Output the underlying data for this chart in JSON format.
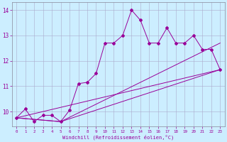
{
  "xlabel": "Windchill (Refroidissement éolien,°C)",
  "bg_color": "#cceeff",
  "line_color": "#990099",
  "xlim": [
    -0.5,
    23.5
  ],
  "ylim": [
    9.4,
    14.3
  ],
  "xticks": [
    0,
    1,
    2,
    3,
    4,
    5,
    6,
    7,
    8,
    9,
    10,
    11,
    12,
    13,
    14,
    15,
    16,
    17,
    18,
    19,
    20,
    21,
    22,
    23
  ],
  "yticks": [
    10,
    11,
    12,
    13,
    14
  ],
  "data_x": [
    0,
    1,
    2,
    3,
    4,
    5,
    6,
    7,
    8,
    9,
    10,
    11,
    12,
    13,
    14,
    15,
    16,
    17,
    18,
    19,
    20,
    21,
    22,
    23
  ],
  "data_y": [
    9.75,
    10.1,
    9.6,
    9.85,
    9.85,
    9.6,
    10.05,
    11.1,
    11.15,
    11.5,
    12.7,
    12.7,
    13.0,
    14.0,
    13.6,
    12.7,
    12.7,
    13.3,
    12.7,
    12.7,
    13.0,
    12.45,
    12.45,
    11.65
  ],
  "line1_x": [
    0,
    23
  ],
  "line1_y": [
    9.75,
    11.65
  ],
  "line2_x": [
    0,
    5,
    23
  ],
  "line2_y": [
    9.75,
    9.6,
    11.65
  ],
  "line3_x": [
    0,
    5,
    23
  ],
  "line3_y": [
    9.75,
    9.6,
    12.7
  ]
}
